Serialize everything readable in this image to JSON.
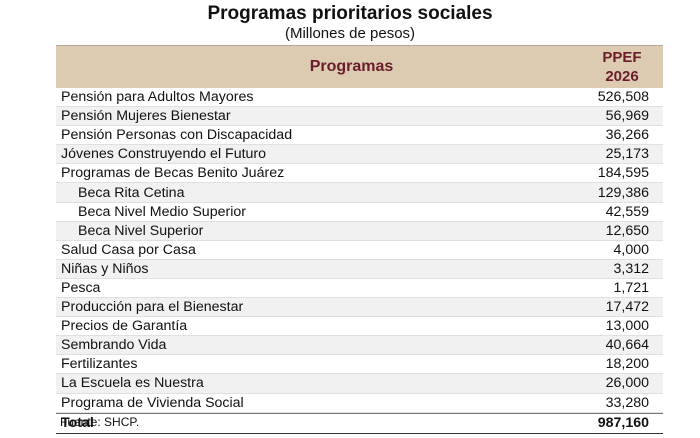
{
  "header": {
    "title": "Programas prioritarios sociales",
    "subtitle": "(Millones de pesos)"
  },
  "table": {
    "col_programas": "Programas",
    "col_ppef_line1": "PPEF",
    "col_ppef_line2": "2026",
    "rows": [
      {
        "name": "Pensión para Adultos Mayores",
        "value": "526,508"
      },
      {
        "name": "Pensión Mujeres Bienestar",
        "value": "56,969"
      },
      {
        "name": "Pensión Personas con Discapacidad",
        "value": "36,266"
      },
      {
        "name": "Jóvenes Construyendo el Futuro",
        "value": "25,173"
      },
      {
        "name": "Programas de Becas Benito Juárez",
        "value": "184,595"
      },
      {
        "name": "Beca Rita Cetina",
        "value": "129,386"
      },
      {
        "name": "Beca Nivel Medio Superior",
        "value": "42,559"
      },
      {
        "name": "Beca Nivel Superior",
        "value": "12,650"
      },
      {
        "name": "Salud Casa por Casa",
        "value": "4,000"
      },
      {
        "name": "Niñas y Niños",
        "value": "3,312"
      },
      {
        "name": "Pesca",
        "value": "1,721"
      },
      {
        "name": "Producción para el Bienestar",
        "value": "17,472"
      },
      {
        "name": "Precios de Garantía",
        "value": "13,000"
      },
      {
        "name": "Sembrando Vida",
        "value": "40,664"
      },
      {
        "name": "Fertilizantes",
        "value": "18,200"
      },
      {
        "name": "La Escuela es Nuestra",
        "value": "26,000"
      },
      {
        "name": "Programa de Vivienda Social",
        "value": "33,280"
      }
    ],
    "total": {
      "name": "Total",
      "value": "987,160"
    }
  },
  "footer": {
    "source": "Fuente: SHCP."
  }
}
